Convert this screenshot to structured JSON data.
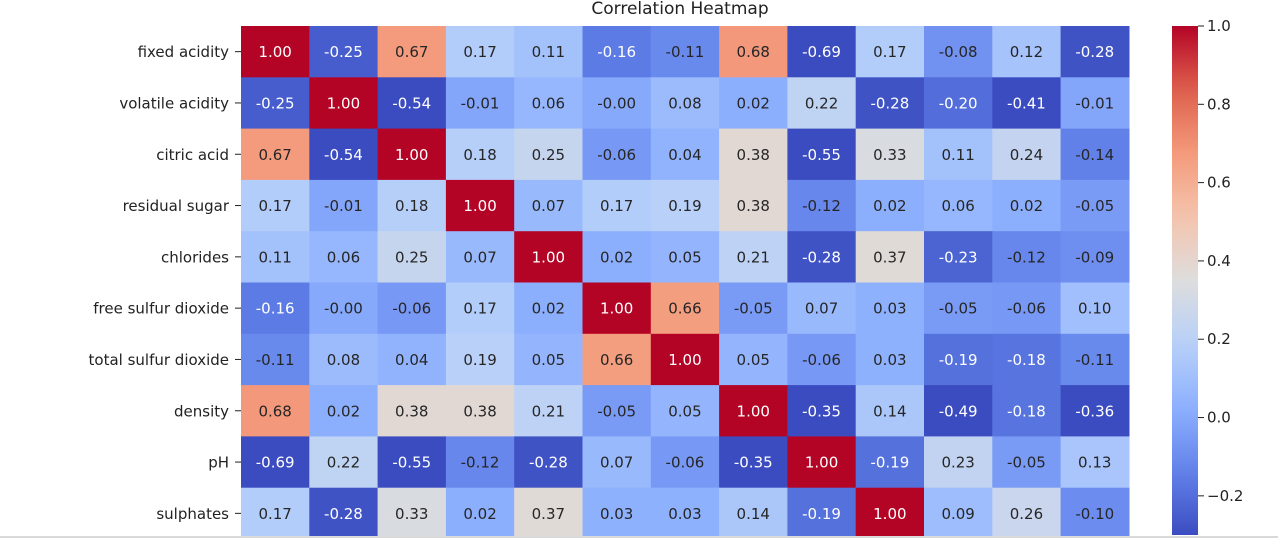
{
  "chart_data": {
    "type": "heatmap",
    "title": "Correlation Heatmap",
    "rows": [
      "fixed acidity",
      "volatile acidity",
      "citric acid",
      "residual sugar",
      "chlorides",
      "free sulfur dioxide",
      "total sulfur dioxide",
      "density",
      "pH",
      "sulphates"
    ],
    "values": [
      [
        1.0,
        -0.25,
        0.67,
        0.17,
        0.11,
        -0.16,
        -0.11,
        0.68,
        -0.69,
        0.17,
        -0.08,
        0.12,
        -0.28
      ],
      [
        -0.25,
        1.0,
        -0.54,
        -0.01,
        0.06,
        -0.0,
        0.08,
        0.02,
        0.22,
        -0.28,
        -0.2,
        -0.41,
        -0.01
      ],
      [
        0.67,
        -0.54,
        1.0,
        0.18,
        0.25,
        -0.06,
        0.04,
        0.38,
        -0.55,
        0.33,
        0.11,
        0.24,
        -0.14
      ],
      [
        0.17,
        -0.01,
        0.18,
        1.0,
        0.07,
        0.17,
        0.19,
        0.38,
        -0.12,
        0.02,
        0.06,
        0.02,
        -0.05
      ],
      [
        0.11,
        0.06,
        0.25,
        0.07,
        1.0,
        0.02,
        0.05,
        0.21,
        -0.28,
        0.37,
        -0.23,
        -0.12,
        -0.09
      ],
      [
        -0.16,
        -0.0,
        -0.06,
        0.17,
        0.02,
        1.0,
        0.66,
        -0.05,
        0.07,
        0.03,
        -0.05,
        -0.06,
        0.1
      ],
      [
        -0.11,
        0.08,
        0.04,
        0.19,
        0.05,
        0.66,
        1.0,
        0.05,
        -0.06,
        0.03,
        -0.19,
        -0.18,
        -0.11
      ],
      [
        0.68,
        0.02,
        0.38,
        0.38,
        0.21,
        -0.05,
        0.05,
        1.0,
        -0.35,
        0.14,
        -0.49,
        -0.18,
        -0.36
      ],
      [
        -0.69,
        0.22,
        -0.55,
        -0.12,
        -0.28,
        0.07,
        -0.06,
        -0.35,
        1.0,
        -0.19,
        0.23,
        -0.05,
        0.13
      ],
      [
        0.17,
        -0.28,
        0.33,
        0.02,
        0.37,
        0.03,
        0.03,
        0.14,
        -0.19,
        1.0,
        0.09,
        0.26,
        -0.1
      ]
    ],
    "value_labels": [
      [
        "1.00",
        "-0.25",
        "0.67",
        "0.17",
        "0.11",
        "-0.16",
        "-0.11",
        "0.68",
        "-0.69",
        "0.17",
        "-0.08",
        "0.12",
        "-0.28"
      ],
      [
        "-0.25",
        "1.00",
        "-0.54",
        "-0.01",
        "0.06",
        "-0.00",
        "0.08",
        "0.02",
        "0.22",
        "-0.28",
        "-0.20",
        "-0.41",
        "-0.01"
      ],
      [
        "0.67",
        "-0.54",
        "1.00",
        "0.18",
        "0.25",
        "-0.06",
        "0.04",
        "0.38",
        "-0.55",
        "0.33",
        "0.11",
        "0.24",
        "-0.14"
      ],
      [
        "0.17",
        "-0.01",
        "0.18",
        "1.00",
        "0.07",
        "0.17",
        "0.19",
        "0.38",
        "-0.12",
        "0.02",
        "0.06",
        "0.02",
        "-0.05"
      ],
      [
        "0.11",
        "0.06",
        "0.25",
        "0.07",
        "1.00",
        "0.02",
        "0.05",
        "0.21",
        "-0.28",
        "0.37",
        "-0.23",
        "-0.12",
        "-0.09"
      ],
      [
        "-0.16",
        "-0.00",
        "-0.06",
        "0.17",
        "0.02",
        "1.00",
        "0.66",
        "-0.05",
        "0.07",
        "0.03",
        "-0.05",
        "-0.06",
        "0.10"
      ],
      [
        "-0.11",
        "0.08",
        "0.04",
        "0.19",
        "0.05",
        "0.66",
        "1.00",
        "0.05",
        "-0.06",
        "0.03",
        "-0.19",
        "-0.18",
        "-0.11"
      ],
      [
        "0.68",
        "0.02",
        "0.38",
        "0.38",
        "0.21",
        "-0.05",
        "0.05",
        "1.00",
        "-0.35",
        "0.14",
        "-0.49",
        "-0.18",
        "-0.36"
      ],
      [
        "-0.69",
        "0.22",
        "-0.55",
        "-0.12",
        "-0.28",
        "0.07",
        "-0.06",
        "-0.35",
        "1.00",
        "-0.19",
        "0.23",
        "-0.05",
        "0.13"
      ],
      [
        "0.17",
        "-0.28",
        "0.33",
        "0.02",
        "0.37",
        "0.03",
        "0.03",
        "0.14",
        "-0.19",
        "1.00",
        "0.09",
        "0.26",
        "-0.10"
      ]
    ],
    "colormap": "coolwarm",
    "vmin": -0.3,
    "vmax": 1.0,
    "colorbar": {
      "ticks": [
        1.0,
        0.8,
        0.6,
        0.4,
        0.2,
        0.0,
        -0.2
      ],
      "tick_labels": [
        "1.0",
        "0.8",
        "0.6",
        "0.4",
        "0.2",
        "0.0",
        "−0.2"
      ],
      "placement": "right"
    },
    "grid": false
  }
}
